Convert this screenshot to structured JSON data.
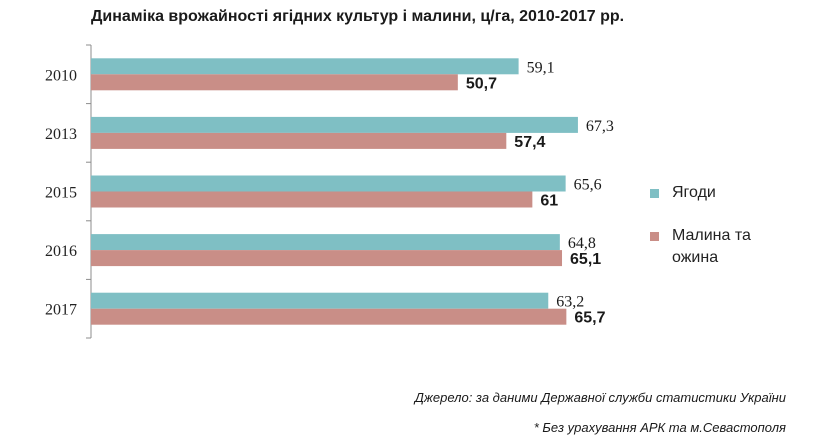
{
  "chart_data": {
    "type": "bar",
    "orientation": "horizontal",
    "title": "Динаміка врожайності ягідних культур і малини, ц/га, 2010-2017 рр.",
    "categories": [
      "2010",
      "2013",
      "2015",
      "2016",
      "2017"
    ],
    "series": [
      {
        "name": "Ягоди",
        "values": [
          59.1,
          67.3,
          65.6,
          64.8,
          63.2
        ],
        "labels": [
          "59,1",
          "67,3",
          "65,6",
          "64,8",
          "63,2"
        ],
        "color": "#7fbfc4",
        "label_bold": false
      },
      {
        "name": "Малина та ожина",
        "values": [
          50.7,
          57.4,
          61,
          65.1,
          65.7
        ],
        "labels": [
          "50,7",
          "57,4",
          "61",
          "65,1",
          "65,7"
        ],
        "color": "#c98e87",
        "label_bold": true
      }
    ],
    "xlim": [
      0,
      85
    ],
    "grid": false,
    "legend": "right"
  },
  "notes": {
    "source": "Джерело: за даними Державної служби статистики України",
    "footnote": "* Без урахування АРК та м.Севастополя"
  }
}
